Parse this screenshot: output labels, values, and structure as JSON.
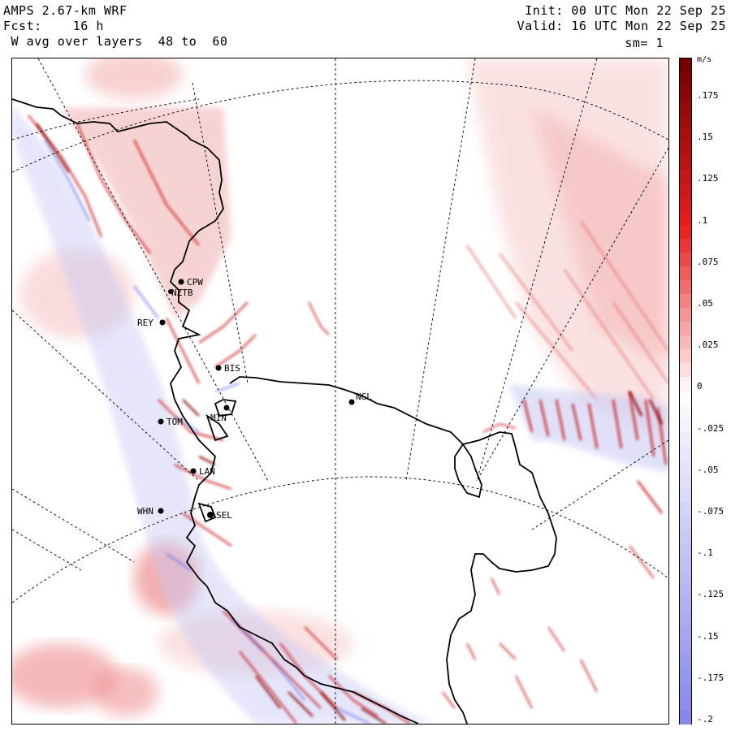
{
  "header": {
    "model": "AMPS 2.67-km WRF",
    "fcst": "Fcst:    16 h",
    "field": " W avg over layers  48 to  60",
    "init": "Init: 00 UTC Mon 22 Sep 25",
    "valid": "Valid: 16 UTC Mon 22 Sep 25",
    "smoothing": "sm= 1"
  },
  "colorbar": {
    "units": "m/s",
    "labels": [
      ".175",
      ".15",
      ".125",
      ".1",
      ".075",
      ".05",
      ".025",
      "0",
      "-.025",
      "-.05",
      "-.075",
      "-.1",
      "-.125",
      "-.15",
      "-.175",
      "-.2"
    ],
    "positive_color": "#8b0000",
    "negative_color": "#8888ee"
  },
  "stations": [
    {
      "id": "CPW",
      "label": "CPW"
    },
    {
      "id": "NZTB",
      "label": "NZTB"
    },
    {
      "id": "REY",
      "label": "REY"
    },
    {
      "id": "BIS",
      "label": "BIS"
    },
    {
      "id": "NGL",
      "label": "NGL"
    },
    {
      "id": "TOM",
      "label": "TOM"
    },
    {
      "id": "MIN",
      "label": "MIN"
    },
    {
      "id": "LAN",
      "label": "LAN"
    },
    {
      "id": "WHN",
      "label": "WHN"
    },
    {
      "id": "SEL",
      "label": "SEL"
    }
  ]
}
